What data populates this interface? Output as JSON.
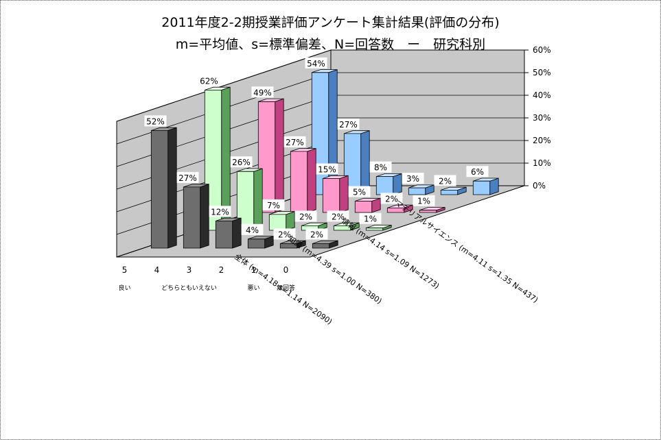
{
  "chart_data": {
    "type": "bar",
    "title": "2011年度2-2期授業評価アンケート集計結果(評価の分布)",
    "subtitle": "m=平均値、s=標準偏差、N=回答数　ー　研究科別",
    "categories": [
      "5",
      "4",
      "3",
      "2",
      "1",
      "0"
    ],
    "category_labels": [
      "良い",
      "",
      "どちらともいえない",
      "",
      "悪い",
      "無回答"
    ],
    "ylim": [
      0,
      60
    ],
    "y_ticks": [
      "0%",
      "10%",
      "20%",
      "30%",
      "40%",
      "50%",
      "60%"
    ],
    "series": [
      {
        "name": "全体 (m=4.18 s=1.14 N=2090)",
        "values": [
          52,
          27,
          12,
          4,
          2,
          2
        ],
        "labels": [
          "52%",
          "27%",
          "12%",
          "4%",
          "2%",
          "2%"
        ]
      },
      {
        "name": "知識 (m=4.39 s=1.00 N=380)",
        "values": [
          62,
          26,
          7,
          2,
          2,
          1
        ],
        "labels": [
          "62%",
          "26%",
          "7%",
          "2%",
          "2%",
          "1%"
        ]
      },
      {
        "name": "情報 (m=4.14 s=1.09 N=1273)",
        "values": [
          49,
          27,
          15,
          5,
          2,
          1
        ],
        "labels": [
          "49%",
          "27%",
          "15%",
          "5%",
          "2%",
          "1%"
        ]
      },
      {
        "name": "マテリアルサイエンス (m=4.11 s=1.35 N=437)",
        "values": [
          54,
          27,
          8,
          3,
          2,
          6
        ],
        "labels": [
          "54%",
          "27%",
          "8%",
          "3%",
          "2%",
          "6%"
        ]
      }
    ],
    "colors": {
      "series_fill": [
        "#6e6e6e",
        "#ccffcc",
        "#ff99cc",
        "#99ccff"
      ],
      "series_top": [
        "#9a9a9a",
        "#e6ffe6",
        "#ffccee",
        "#cce6ff"
      ],
      "series_side": [
        "#2a2a2a",
        "#5aa05a",
        "#c04080",
        "#4a80c0"
      ],
      "wall": "#c8c8c8",
      "floor": "#c8c8c8"
    },
    "grid": true
  }
}
